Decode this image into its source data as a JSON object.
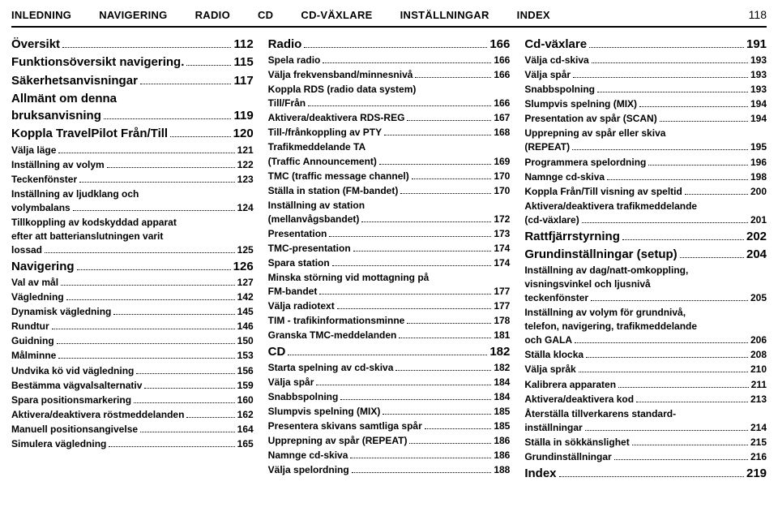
{
  "page_number": "118",
  "tabs": [
    "INLEDNING",
    "NAVIGERING",
    "RADIO",
    "CD",
    "CD-VÄXLARE",
    "INSTÄLLNINGAR",
    "INDEX"
  ],
  "columns": [
    [
      {
        "t": "section",
        "label": "Översikt",
        "page": "112"
      },
      {
        "t": "section",
        "label": "Funktionsöversikt navigering.",
        "page": "115"
      },
      {
        "t": "section",
        "label": "Säkerhetsanvisningar",
        "page": "117"
      },
      {
        "t": "section",
        "label": "Allmänt om denna",
        "cont": "bruksanvisning",
        "page": "119"
      },
      {
        "t": "section",
        "label": "Koppla TravelPilot Från/Till",
        "page": "120"
      },
      {
        "t": "sub",
        "label": "Välja läge",
        "page": "121"
      },
      {
        "t": "sub",
        "label": "Inställning av volym",
        "page": "122"
      },
      {
        "t": "sub",
        "label": "Teckenfönster",
        "page": "123"
      },
      {
        "t": "sub",
        "label": "Inställning av ljudklang och",
        "cont": "volymbalans",
        "page": "124"
      },
      {
        "t": "sub",
        "label": "Tillkoppling av kodskyddad apparat",
        "cont": "efter att batterianslutningen varit",
        "cont2": "lossad",
        "page": "125"
      },
      {
        "t": "section",
        "label": "Navigering",
        "page": "126"
      },
      {
        "t": "sub",
        "label": "Val av mål",
        "page": "127"
      },
      {
        "t": "sub",
        "label": "Vägledning",
        "page": "142"
      },
      {
        "t": "sub",
        "label": "Dynamisk vägledning",
        "page": "145"
      },
      {
        "t": "sub",
        "label": "Rundtur",
        "page": "146"
      },
      {
        "t": "sub",
        "label": "Guidning",
        "page": "150"
      },
      {
        "t": "sub",
        "label": "Målminne",
        "page": "153"
      },
      {
        "t": "sub",
        "label": "Undvika kö vid vägledning",
        "page": "156"
      },
      {
        "t": "sub",
        "label": "Bestämma vägvalsalternativ",
        "page": "159"
      },
      {
        "t": "sub",
        "label": "Spara positionsmarkering",
        "page": "160"
      },
      {
        "t": "sub",
        "label": "Aktivera/deaktivera röstmeddelanden",
        "page": "162"
      },
      {
        "t": "sub",
        "label": "Manuell positionsangivelse",
        "page": "164"
      },
      {
        "t": "sub",
        "label": "Simulera vägledning",
        "page": "165"
      }
    ],
    [
      {
        "t": "section",
        "label": "Radio",
        "page": "166"
      },
      {
        "t": "sub",
        "label": "Spela radio",
        "page": "166"
      },
      {
        "t": "sub",
        "label": "Välja frekvensband/minnesnivå",
        "page": "166"
      },
      {
        "t": "sub",
        "label": "Koppla RDS (radio data system)",
        "cont": "Till/Från",
        "page": "166"
      },
      {
        "t": "sub",
        "label": "Aktivera/deaktivera RDS-REG",
        "page": "167"
      },
      {
        "t": "sub",
        "label": "Till-/frånkoppling av PTY",
        "page": "168"
      },
      {
        "t": "sub",
        "label": "Trafikmeddelande TA",
        "cont": "(Traffic Announcement)",
        "page": "169"
      },
      {
        "t": "sub",
        "label": "TMC (traffic message channel)",
        "page": "170"
      },
      {
        "t": "sub",
        "label": "Ställa in station (FM-bandet)",
        "page": "170"
      },
      {
        "t": "sub",
        "label": "Inställning av station",
        "cont": "(mellanvågsbandet)",
        "page": "172"
      },
      {
        "t": "sub",
        "label": "Presentation",
        "page": "173"
      },
      {
        "t": "sub",
        "label": "TMC-presentation",
        "page": "174"
      },
      {
        "t": "sub",
        "label": "Spara station",
        "page": "174"
      },
      {
        "t": "sub",
        "label": "Minska störning vid mottagning på",
        "cont": "FM-bandet",
        "page": "177"
      },
      {
        "t": "sub",
        "label": "Välja radiotext",
        "page": "177"
      },
      {
        "t": "sub",
        "label": "TIM - trafikinformationsminne",
        "page": "178"
      },
      {
        "t": "sub",
        "label": "Granska TMC-meddelanden",
        "page": "181"
      },
      {
        "t": "section",
        "label": "CD",
        "page": "182"
      },
      {
        "t": "sub",
        "label": "Starta spelning av cd-skiva",
        "page": "182"
      },
      {
        "t": "sub",
        "label": "Välja spår",
        "page": "184"
      },
      {
        "t": "sub",
        "label": "Snabbspolning",
        "page": "184"
      },
      {
        "t": "sub",
        "label": "Slumpvis spelning (MIX)",
        "page": "185"
      },
      {
        "t": "sub",
        "label": "Presentera skivans samtliga spår",
        "page": "185"
      },
      {
        "t": "sub",
        "label": "Upprepning av spår (REPEAT)",
        "page": "186"
      },
      {
        "t": "sub",
        "label": "Namnge cd-skiva",
        "page": "186"
      },
      {
        "t": "sub",
        "label": "Välja spelordning",
        "page": "188"
      }
    ],
    [
      {
        "t": "section",
        "label": "Cd-växlare",
        "page": "191"
      },
      {
        "t": "sub",
        "label": "Välja cd-skiva",
        "page": "193"
      },
      {
        "t": "sub",
        "label": "Välja spår",
        "page": "193"
      },
      {
        "t": "sub",
        "label": "Snabbspolning",
        "page": "193"
      },
      {
        "t": "sub",
        "label": "Slumpvis spelning (MIX)",
        "page": "194"
      },
      {
        "t": "sub",
        "label": "Presentation av spår (SCAN)",
        "page": "194"
      },
      {
        "t": "sub",
        "label": "Upprepning av spår eller skiva",
        "cont": "(REPEAT)",
        "page": "195"
      },
      {
        "t": "sub",
        "label": "Programmera spelordning",
        "page": "196"
      },
      {
        "t": "sub",
        "label": "Namnge cd-skiva",
        "page": "198"
      },
      {
        "t": "sub",
        "label": "Koppla Från/Till visning av speltid",
        "page": "200"
      },
      {
        "t": "sub",
        "label": "Aktivera/deaktivera trafikmeddelande",
        "cont": "(cd-växlare)",
        "page": "201"
      },
      {
        "t": "section",
        "label": "Rattfjärrstyrning",
        "page": "202"
      },
      {
        "t": "section",
        "label": "Grundinställningar (setup)",
        "page": "204"
      },
      {
        "t": "sub",
        "label": "Inställning av dag/natt-omkoppling,",
        "cont": "visningsvinkel och ljusnivå",
        "cont2": "teckenfönster",
        "page": "205"
      },
      {
        "t": "sub",
        "label": "Inställning av volym för grundnivå,",
        "cont": "telefon, navigering, trafikmeddelande",
        "cont2": "och GALA",
        "page": "206"
      },
      {
        "t": "sub",
        "label": "Ställa klocka",
        "page": "208"
      },
      {
        "t": "sub",
        "label": "Välja språk",
        "page": "210"
      },
      {
        "t": "sub",
        "label": "Kalibrera apparaten",
        "page": "211"
      },
      {
        "t": "sub",
        "label": "Aktivera/deaktivera kod",
        "page": "213"
      },
      {
        "t": "sub",
        "label": "Återställa tillverkarens standard-",
        "cont": "inställningar",
        "page": "214"
      },
      {
        "t": "sub",
        "label": "Ställa in sökkänslighet",
        "page": "215"
      },
      {
        "t": "sub",
        "label": "Grundinställningar",
        "page": "216"
      },
      {
        "t": "section",
        "label": "Index",
        "page": "219"
      }
    ]
  ]
}
